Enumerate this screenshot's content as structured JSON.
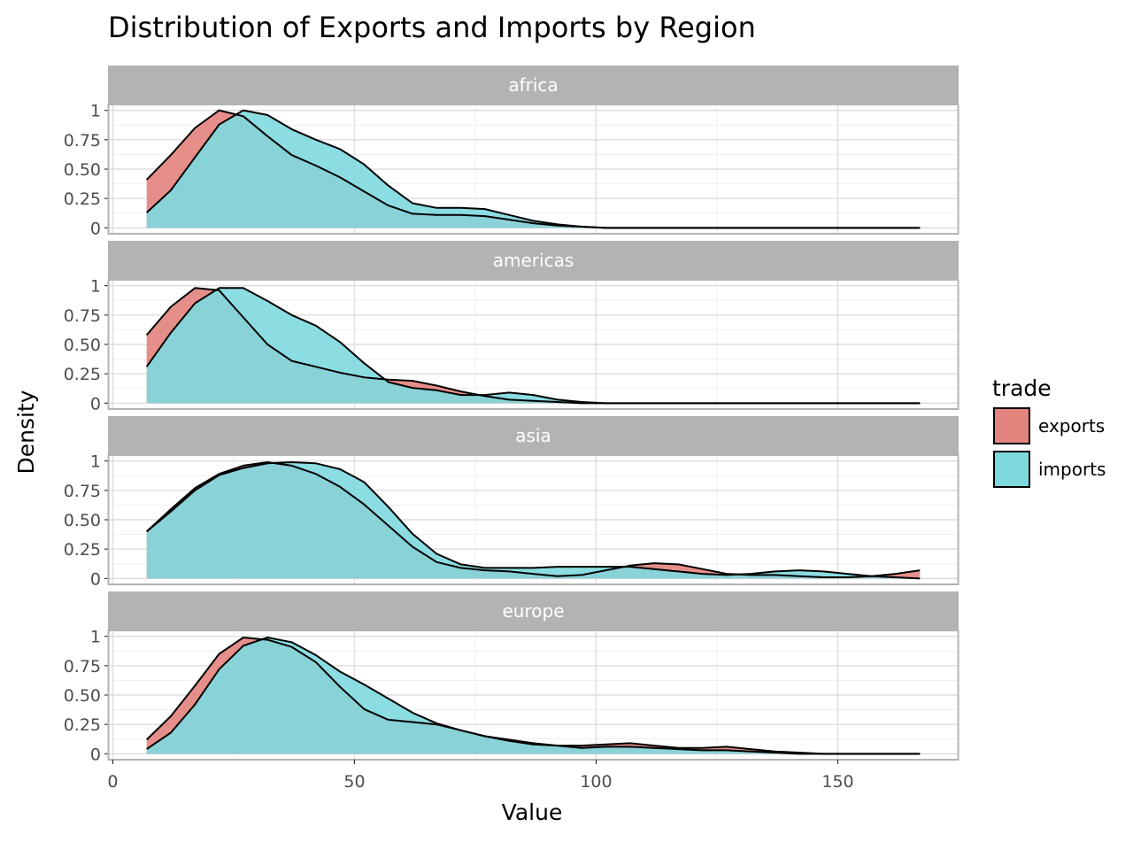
{
  "chart_data": {
    "type": "area",
    "subtype": "density-faceted",
    "title": "Distribution of Exports and Imports by Region",
    "xlabel": "Value",
    "ylabel": "Density",
    "xlim": [
      -1,
      175
    ],
    "ylim": [
      -0.05,
      1.05
    ],
    "x_ticks": [
      0,
      50,
      100,
      150
    ],
    "x_tick_labels": [
      "0",
      "50",
      "100",
      "150"
    ],
    "y_ticks": [
      0,
      0.25,
      0.5,
      0.75,
      1
    ],
    "y_tick_labels": [
      "0",
      "0.25",
      "0.50",
      "0.75",
      "1"
    ],
    "grid": true,
    "legend": {
      "title": "trade",
      "position": "right",
      "entries": [
        {
          "label": "exports",
          "color": "#E3837D"
        },
        {
          "label": "imports",
          "color": "#7ED9DF"
        }
      ]
    },
    "facet_strip_color": "#B3B3B3",
    "panels": [
      {
        "name": "africa",
        "series": [
          {
            "name": "exports",
            "color": "#E3837D",
            "points": [
              [
                7,
                0.41
              ],
              [
                12,
                0.62
              ],
              [
                17,
                0.85
              ],
              [
                22,
                1.0
              ],
              [
                27,
                0.95
              ],
              [
                32,
                0.78
              ],
              [
                37,
                0.62
              ],
              [
                42,
                0.53
              ],
              [
                47,
                0.43
              ],
              [
                52,
                0.31
              ],
              [
                57,
                0.19
              ],
              [
                62,
                0.12
              ],
              [
                67,
                0.11
              ],
              [
                72,
                0.11
              ],
              [
                77,
                0.1
              ],
              [
                82,
                0.07
              ],
              [
                87,
                0.04
              ],
              [
                92,
                0.02
              ],
              [
                97,
                0.01
              ],
              [
                102,
                0
              ],
              [
                110,
                0
              ],
              [
                120,
                0
              ],
              [
                130,
                0
              ],
              [
                140,
                0
              ],
              [
                150,
                0
              ],
              [
                160,
                0
              ],
              [
                167,
                0
              ]
            ]
          },
          {
            "name": "imports",
            "color": "#7ED9DF",
            "points": [
              [
                7,
                0.13
              ],
              [
                12,
                0.32
              ],
              [
                17,
                0.6
              ],
              [
                22,
                0.88
              ],
              [
                27,
                1.0
              ],
              [
                32,
                0.96
              ],
              [
                37,
                0.84
              ],
              [
                42,
                0.75
              ],
              [
                47,
                0.67
              ],
              [
                52,
                0.54
              ],
              [
                57,
                0.36
              ],
              [
                62,
                0.21
              ],
              [
                67,
                0.17
              ],
              [
                72,
                0.17
              ],
              [
                77,
                0.16
              ],
              [
                82,
                0.11
              ],
              [
                87,
                0.06
              ],
              [
                92,
                0.03
              ],
              [
                97,
                0.01
              ],
              [
                102,
                0
              ],
              [
                110,
                0
              ],
              [
                120,
                0
              ],
              [
                130,
                0
              ],
              [
                140,
                0
              ],
              [
                150,
                0
              ],
              [
                160,
                0
              ],
              [
                167,
                0
              ]
            ]
          }
        ]
      },
      {
        "name": "americas",
        "series": [
          {
            "name": "exports",
            "color": "#E3837D",
            "points": [
              [
                7,
                0.58
              ],
              [
                12,
                0.82
              ],
              [
                17,
                0.98
              ],
              [
                22,
                0.96
              ],
              [
                27,
                0.73
              ],
              [
                32,
                0.5
              ],
              [
                37,
                0.36
              ],
              [
                42,
                0.31
              ],
              [
                47,
                0.26
              ],
              [
                52,
                0.22
              ],
              [
                57,
                0.2
              ],
              [
                62,
                0.19
              ],
              [
                67,
                0.15
              ],
              [
                72,
                0.1
              ],
              [
                77,
                0.06
              ],
              [
                82,
                0.03
              ],
              [
                87,
                0.02
              ],
              [
                92,
                0.01
              ],
              [
                97,
                0
              ],
              [
                102,
                0
              ],
              [
                110,
                0
              ],
              [
                120,
                0
              ],
              [
                130,
                0
              ],
              [
                140,
                0
              ],
              [
                150,
                0
              ],
              [
                160,
                0
              ],
              [
                167,
                0
              ]
            ]
          },
          {
            "name": "imports",
            "color": "#7ED9DF",
            "points": [
              [
                7,
                0.31
              ],
              [
                12,
                0.6
              ],
              [
                17,
                0.85
              ],
              [
                22,
                0.98
              ],
              [
                27,
                0.98
              ],
              [
                32,
                0.87
              ],
              [
                37,
                0.75
              ],
              [
                42,
                0.66
              ],
              [
                47,
                0.52
              ],
              [
                52,
                0.34
              ],
              [
                57,
                0.18
              ],
              [
                62,
                0.13
              ],
              [
                67,
                0.11
              ],
              [
                72,
                0.07
              ],
              [
                77,
                0.07
              ],
              [
                82,
                0.09
              ],
              [
                87,
                0.07
              ],
              [
                92,
                0.03
              ],
              [
                97,
                0.01
              ],
              [
                102,
                0
              ],
              [
                110,
                0
              ],
              [
                120,
                0
              ],
              [
                130,
                0
              ],
              [
                140,
                0
              ],
              [
                150,
                0
              ],
              [
                160,
                0
              ],
              [
                167,
                0
              ]
            ]
          }
        ]
      },
      {
        "name": "asia",
        "series": [
          {
            "name": "exports",
            "color": "#E3837D",
            "points": [
              [
                7,
                0.4
              ],
              [
                12,
                0.59
              ],
              [
                17,
                0.77
              ],
              [
                22,
                0.89
              ],
              [
                27,
                0.96
              ],
              [
                32,
                0.99
              ],
              [
                37,
                0.96
              ],
              [
                42,
                0.89
              ],
              [
                47,
                0.78
              ],
              [
                52,
                0.63
              ],
              [
                57,
                0.45
              ],
              [
                62,
                0.27
              ],
              [
                67,
                0.14
              ],
              [
                72,
                0.09
              ],
              [
                77,
                0.07
              ],
              [
                82,
                0.06
              ],
              [
                87,
                0.04
              ],
              [
                92,
                0.02
              ],
              [
                97,
                0.03
              ],
              [
                102,
                0.07
              ],
              [
                107,
                0.11
              ],
              [
                112,
                0.13
              ],
              [
                117,
                0.12
              ],
              [
                122,
                0.08
              ],
              [
                127,
                0.04
              ],
              [
                132,
                0.03
              ],
              [
                137,
                0.03
              ],
              [
                142,
                0.02
              ],
              [
                147,
                0.01
              ],
              [
                152,
                0.01
              ],
              [
                157,
                0.02
              ],
              [
                162,
                0.04
              ],
              [
                167,
                0.07
              ]
            ]
          },
          {
            "name": "imports",
            "color": "#7ED9DF",
            "points": [
              [
                7,
                0.4
              ],
              [
                12,
                0.57
              ],
              [
                17,
                0.75
              ],
              [
                22,
                0.88
              ],
              [
                27,
                0.94
              ],
              [
                32,
                0.98
              ],
              [
                37,
                0.99
              ],
              [
                42,
                0.98
              ],
              [
                47,
                0.93
              ],
              [
                52,
                0.82
              ],
              [
                57,
                0.61
              ],
              [
                62,
                0.38
              ],
              [
                67,
                0.21
              ],
              [
                72,
                0.12
              ],
              [
                77,
                0.09
              ],
              [
                82,
                0.09
              ],
              [
                87,
                0.09
              ],
              [
                92,
                0.1
              ],
              [
                97,
                0.1
              ],
              [
                102,
                0.1
              ],
              [
                107,
                0.1
              ],
              [
                112,
                0.08
              ],
              [
                117,
                0.06
              ],
              [
                122,
                0.04
              ],
              [
                127,
                0.03
              ],
              [
                132,
                0.04
              ],
              [
                137,
                0.06
              ],
              [
                142,
                0.07
              ],
              [
                147,
                0.06
              ],
              [
                152,
                0.04
              ],
              [
                157,
                0.02
              ],
              [
                162,
                0.01
              ],
              [
                167,
                0
              ]
            ]
          }
        ]
      },
      {
        "name": "europe",
        "series": [
          {
            "name": "exports",
            "color": "#E3837D",
            "points": [
              [
                7,
                0.12
              ],
              [
                12,
                0.32
              ],
              [
                17,
                0.58
              ],
              [
                22,
                0.85
              ],
              [
                27,
                0.99
              ],
              [
                32,
                0.97
              ],
              [
                37,
                0.91
              ],
              [
                42,
                0.78
              ],
              [
                47,
                0.57
              ],
              [
                52,
                0.38
              ],
              [
                57,
                0.29
              ],
              [
                62,
                0.27
              ],
              [
                67,
                0.25
              ],
              [
                72,
                0.2
              ],
              [
                77,
                0.15
              ],
              [
                82,
                0.11
              ],
              [
                87,
                0.08
              ],
              [
                92,
                0.07
              ],
              [
                97,
                0.07
              ],
              [
                102,
                0.08
              ],
              [
                107,
                0.09
              ],
              [
                112,
                0.07
              ],
              [
                117,
                0.05
              ],
              [
                122,
                0.05
              ],
              [
                127,
                0.06
              ],
              [
                132,
                0.04
              ],
              [
                137,
                0.02
              ],
              [
                142,
                0.01
              ],
              [
                147,
                0
              ],
              [
                160,
                0
              ],
              [
                167,
                0
              ]
            ]
          },
          {
            "name": "imports",
            "color": "#7ED9DF",
            "points": [
              [
                7,
                0.04
              ],
              [
                12,
                0.18
              ],
              [
                17,
                0.42
              ],
              [
                22,
                0.72
              ],
              [
                27,
                0.92
              ],
              [
                32,
                0.99
              ],
              [
                37,
                0.95
              ],
              [
                42,
                0.84
              ],
              [
                47,
                0.7
              ],
              [
                52,
                0.59
              ],
              [
                57,
                0.47
              ],
              [
                62,
                0.35
              ],
              [
                67,
                0.26
              ],
              [
                72,
                0.2
              ],
              [
                77,
                0.15
              ],
              [
                82,
                0.12
              ],
              [
                87,
                0.09
              ],
              [
                92,
                0.07
              ],
              [
                97,
                0.05
              ],
              [
                102,
                0.06
              ],
              [
                107,
                0.06
              ],
              [
                112,
                0.05
              ],
              [
                117,
                0.04
              ],
              [
                122,
                0.03
              ],
              [
                127,
                0.03
              ],
              [
                132,
                0.02
              ],
              [
                137,
                0.01
              ],
              [
                142,
                0
              ],
              [
                150,
                0
              ],
              [
                160,
                0
              ],
              [
                167,
                0
              ]
            ]
          }
        ]
      }
    ]
  }
}
